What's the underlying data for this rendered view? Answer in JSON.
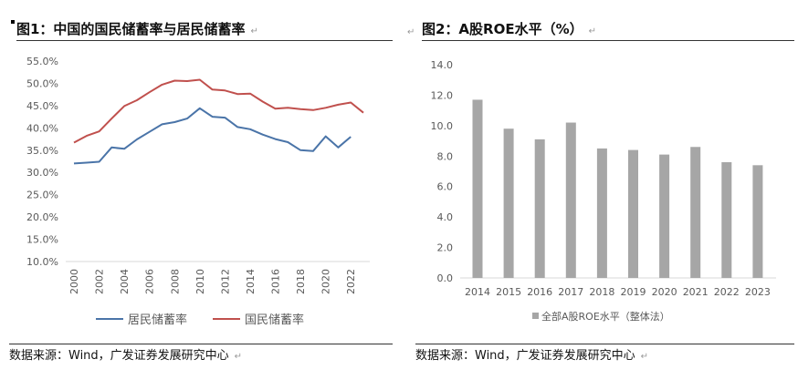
{
  "left": {
    "title": "图1：中国的国民储蓄率与居民储蓄率",
    "source": "数据来源：Wind，广发证券发展研究中心"
  },
  "right": {
    "title": "图2：A股ROE水平（%）",
    "source": "数据来源：Wind，广发证券发展研究中心"
  },
  "para_mark": "↵",
  "chart_data": [
    {
      "type": "line",
      "title": "图1：中国的国民储蓄率与居民储蓄率",
      "x": [
        2000,
        2001,
        2002,
        2003,
        2004,
        2005,
        2006,
        2007,
        2008,
        2009,
        2010,
        2011,
        2012,
        2013,
        2014,
        2015,
        2016,
        2017,
        2018,
        2019,
        2020,
        2021,
        2022,
        2023
      ],
      "xticks": [
        "2000",
        "2002",
        "2004",
        "2006",
        "2008",
        "2010",
        "2012",
        "2014",
        "2016",
        "2018",
        "2020",
        "2022"
      ],
      "yticks": [
        "10.0%",
        "15.0%",
        "20.0%",
        "25.0%",
        "30.0%",
        "35.0%",
        "40.0%",
        "45.0%",
        "50.0%",
        "55.0%"
      ],
      "ylim": [
        10,
        55
      ],
      "grid": false,
      "legend": "bottom",
      "series": [
        {
          "name": "居民储蓄率",
          "color": "#4a74a8",
          "values": [
            32.0,
            32.2,
            32.4,
            35.6,
            35.3,
            37.4,
            39.1,
            40.8,
            41.3,
            42.1,
            44.4,
            42.5,
            42.3,
            40.2,
            39.7,
            38.5,
            37.5,
            36.8,
            35.0,
            34.8,
            38.1,
            35.6,
            38.0,
            null
          ]
        },
        {
          "name": "国民储蓄率",
          "color": "#c0504d",
          "values": [
            36.7,
            38.2,
            39.2,
            42.1,
            44.9,
            46.2,
            48.0,
            49.7,
            50.6,
            50.5,
            50.8,
            48.6,
            48.4,
            47.6,
            47.7,
            45.9,
            44.3,
            44.5,
            44.2,
            44.0,
            44.5,
            45.2,
            45.7,
            43.4
          ]
        }
      ]
    },
    {
      "type": "bar",
      "title": "图2：A股ROE水平（%）",
      "categories": [
        "2014",
        "2015",
        "2016",
        "2017",
        "2018",
        "2019",
        "2020",
        "2021",
        "2022",
        "2023"
      ],
      "yticks": [
        "0.0",
        "2.0",
        "4.0",
        "6.0",
        "8.0",
        "10.0",
        "12.0",
        "14.0"
      ],
      "ylim": [
        0,
        14
      ],
      "grid": false,
      "legend": "bottom",
      "series": [
        {
          "name": "全部A股ROE水平（整体法）",
          "color": "#a6a6a6",
          "values": [
            11.7,
            9.8,
            9.1,
            10.2,
            8.5,
            8.4,
            8.1,
            8.6,
            7.6,
            7.4
          ]
        }
      ]
    }
  ]
}
